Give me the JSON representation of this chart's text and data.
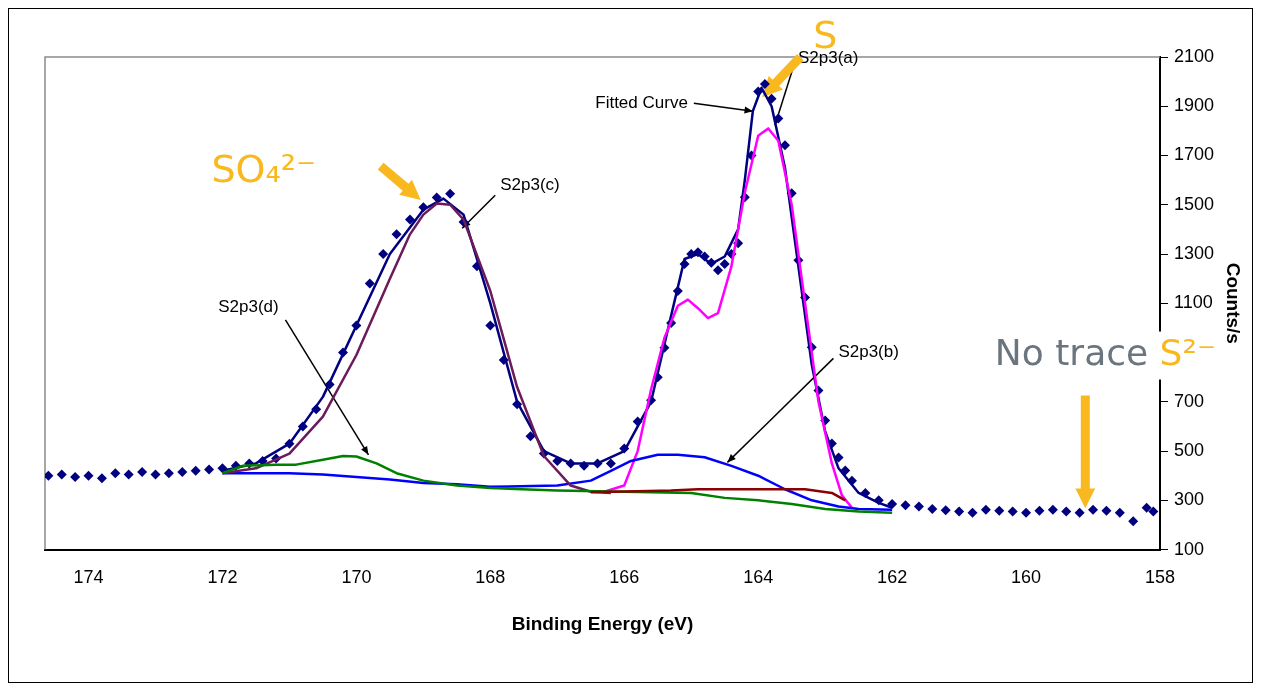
{
  "chart_data": {
    "type": "scatter",
    "xlabel": "Binding Energy (eV)",
    "ylabel": "Counts/s",
    "xlim": [
      174.65,
      158
    ],
    "xticks": [
      174,
      172,
      170,
      168,
      166,
      164,
      162,
      160,
      158
    ],
    "ylim": [
      100,
      2100
    ],
    "yticks": [
      100,
      300,
      500,
      700,
      {
        "value": 900,
        "label": null
      },
      1100,
      1300,
      1500,
      1700,
      1900,
      2100
    ],
    "grid": false,
    "series": [
      {
        "color": "#000080",
        "marker": "diamond",
        "x": [
          174.6,
          174.4,
          174.2,
          174.0,
          173.8,
          173.6,
          173.4,
          173.2,
          173.0,
          172.8,
          172.6,
          172.4,
          172.2,
          172.0,
          171.8,
          171.6,
          171.4,
          171.2,
          171.0,
          170.8,
          170.6,
          170.4,
          170.2,
          170.0,
          169.8,
          169.6,
          169.4,
          169.2,
          169.0,
          168.8,
          168.6,
          168.4,
          168.2,
          168.0,
          167.8,
          167.6,
          167.4,
          167.2,
          167.0,
          166.8,
          166.6,
          166.4,
          166.2,
          166.0,
          165.8,
          165.6,
          165.5,
          165.4,
          165.3,
          165.2,
          165.1,
          165.0,
          164.9,
          164.8,
          164.7,
          164.6,
          164.5,
          164.4,
          164.3,
          164.2,
          164.1,
          164.0,
          163.9,
          163.8,
          163.7,
          163.6,
          163.5,
          163.4,
          163.3,
          163.2,
          163.1,
          163.0,
          162.9,
          162.8,
          162.7,
          162.6,
          162.4,
          162.2,
          162.0,
          161.8,
          161.6,
          161.4,
          161.2,
          161.0,
          160.8,
          160.6,
          160.4,
          160.2,
          160.0,
          159.8,
          159.6,
          159.4,
          159.2,
          159.0,
          158.8,
          158.6,
          158.4,
          158.2,
          158.1
        ],
        "values": [
          400,
          405,
          395,
          400,
          390,
          410,
          405,
          415,
          405,
          410,
          415,
          420,
          425,
          430,
          440,
          450,
          460,
          470,
          530,
          600,
          670,
          770,
          900,
          1010,
          1180,
          1300,
          1380,
          1440,
          1490,
          1530,
          1545,
          1430,
          1250,
          1010,
          870,
          690,
          560,
          490,
          460,
          450,
          440,
          450,
          450,
          510,
          620,
          706,
          800,
          920,
          1020,
          1150,
          1260,
          1300,
          1307,
          1290,
          1265,
          1234,
          1260,
          1300,
          1344,
          1531,
          1700,
          1960,
          1990,
          1930,
          1850,
          1742,
          1547,
          1275,
          1124,
          922,
          746,
          624,
          531,
          474,
          421,
          380,
          330,
          300,
          285,
          280,
          275,
          265,
          260,
          255,
          250,
          262,
          258,
          255,
          250,
          258,
          262,
          255,
          250,
          262,
          258,
          250,
          215,
          270,
          255
        ]
      },
      {
        "type": "line",
        "color": "#000080",
        "line_style": "solid",
        "marker": "none",
        "x": [
          172,
          171.5,
          171,
          170.5,
          170,
          169.5,
          169,
          168.7,
          168.4,
          168,
          167.6,
          167.2,
          166.8,
          166.4,
          166,
          165.6,
          165.3,
          165.1,
          164.9,
          164.7,
          164.5,
          164.3,
          164.2,
          164.08,
          163.95,
          163.8,
          163.6,
          163.4,
          163.2,
          163,
          162.8,
          162.5,
          162.2,
          162
        ],
        "values": [
          420,
          450,
          530,
          720,
          1010,
          1300,
          1480,
          1525,
          1460,
          1100,
          700,
          500,
          450,
          450,
          500,
          700,
          1050,
          1280,
          1300,
          1260,
          1290,
          1400,
          1600,
          1880,
          1975,
          1900,
          1650,
          1250,
          850,
          580,
          430,
          330,
          290,
          270
        ]
      },
      {
        "type": "line",
        "color": "#ff00ff",
        "line_style": "solid",
        "marker": "none",
        "x": [
          166.3,
          166.0,
          165.8,
          165.6,
          165.4,
          165.2,
          165.05,
          164.9,
          164.75,
          164.6,
          164.4,
          164.2,
          164.0,
          163.85,
          163.7,
          163.5,
          163.3,
          163.1,
          162.9,
          162.75,
          162.6
        ],
        "values": [
          335,
          360,
          500,
          750,
          960,
          1090,
          1115,
          1080,
          1040,
          1060,
          1250,
          1550,
          1780,
          1810,
          1760,
          1500,
          1100,
          700,
          450,
          320,
          270
        ]
      },
      {
        "type": "line",
        "color": "#0000ff",
        "line_style": "solid",
        "marker": "none",
        "x": [
          172,
          171,
          170.5,
          170,
          169.5,
          169,
          168.5,
          168,
          167,
          166.5,
          166.2,
          165.9,
          165.5,
          165.2,
          164.8,
          164.4,
          164,
          163.6,
          163.2,
          162.8,
          162.5,
          162
        ],
        "values": [
          410,
          410,
          405,
          395,
          385,
          370,
          365,
          355,
          360,
          380,
          420,
          460,
          485,
          485,
          475,
          440,
          400,
          345,
          300,
          275,
          265,
          262
        ]
      },
      {
        "type": "line",
        "color": "#6b1a5a",
        "line_style": "solid",
        "marker": "none",
        "x": [
          172,
          171.5,
          171,
          170.5,
          170,
          169.5,
          169.2,
          169,
          168.8,
          168.6,
          168.4,
          168,
          167.6,
          167.2,
          166.8,
          166.5,
          166.2
        ],
        "values": [
          410,
          430,
          490,
          640,
          890,
          1200,
          1380,
          1460,
          1505,
          1500,
          1440,
          1150,
          760,
          480,
          360,
          335,
          330
        ]
      },
      {
        "type": "line",
        "color": "#008000",
        "line_style": "solid",
        "marker": "none",
        "x": [
          172,
          171.7,
          171.2,
          170.9,
          170.5,
          170.2,
          170,
          169.7,
          169.4,
          169,
          168.5,
          168,
          167,
          166,
          165,
          164.5,
          164,
          163.5,
          163,
          162.5,
          162
        ],
        "values": [
          410,
          440,
          445,
          445,
          465,
          480,
          478,
          450,
          410,
          380,
          360,
          350,
          340,
          335,
          330,
          310,
          300,
          285,
          265,
          255,
          250
        ]
      },
      {
        "type": "line",
        "color": "#8b0000",
        "line_style": "solid",
        "marker": "none",
        "x": [
          166.5,
          165.3,
          164.9,
          163.3,
          162.9,
          162.7
        ],
        "values": [
          333,
          340,
          345,
          345,
          330,
          300
        ]
      }
    ],
    "annotations": [
      {
        "text": "Fitted Curve",
        "x": 164.08,
        "y": 1880
      },
      {
        "text": "S2p3(a)",
        "x": 163.75,
        "y": 1823
      },
      {
        "text": "S2p3(b)",
        "x": 164.46,
        "y": 454
      },
      {
        "text": "S2p3(c)",
        "x": 168.42,
        "y": 1405
      },
      {
        "text": "S2p3(d)",
        "x": 169.82,
        "y": 485
      },
      {
        "text": "SO₄²⁻",
        "x": 169.04,
        "y": 1519
      },
      {
        "text": "S",
        "x": 163.94,
        "y": 1937
      },
      "No trace S²⁻"
    ]
  }
}
